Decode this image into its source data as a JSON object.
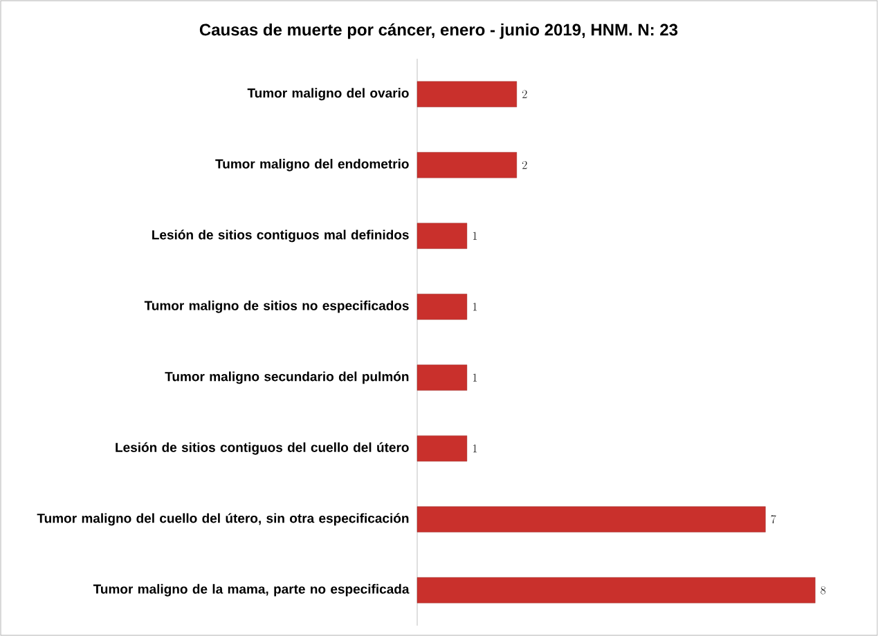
{
  "chart_data": {
    "type": "bar",
    "orientation": "horizontal",
    "title": "Causas de muerte por cáncer, enero - junio 2019, HNM. N: 23",
    "categories": [
      "Tumor maligno del ovario",
      "Tumor maligno del endometrio",
      "Lesión de sitios contiguos mal definidos",
      "Tumor maligno de sitios no especificados",
      "Tumor maligno secundario del pulmón",
      "Lesión de sitios contiguos del cuello del útero",
      "Tumor maligno del cuello del útero, sin otra especificación",
      "Tumor maligno de la mama, parte no especificada"
    ],
    "values": [
      2,
      2,
      1,
      1,
      1,
      1,
      7,
      8
    ],
    "color": "#c9302c",
    "data_labels": true
  }
}
